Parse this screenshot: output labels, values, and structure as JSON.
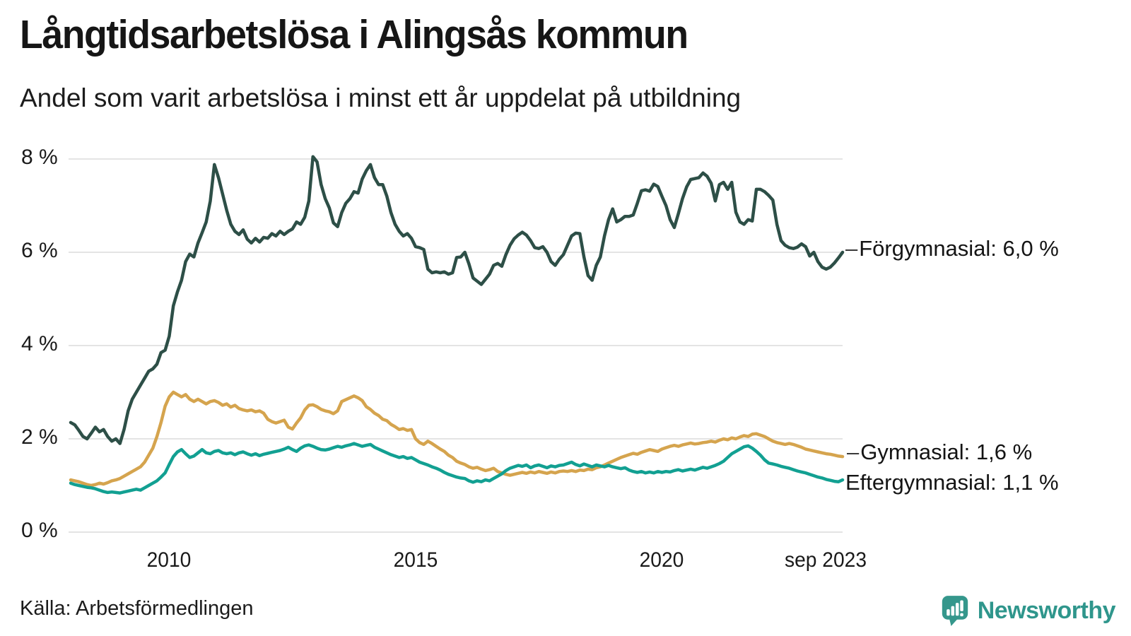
{
  "header": {
    "title": "Långtidsarbetslösa i Alingsås kommun",
    "subtitle": "Andel som varit arbetslösa i minst ett år uppdelat på utbildning"
  },
  "chart": {
    "y_ticks": [
      {
        "label": "8 %",
        "value": 8
      },
      {
        "label": "6 %",
        "value": 6
      },
      {
        "label": "4 %",
        "value": 4
      },
      {
        "label": "2 %",
        "value": 2
      },
      {
        "label": "0 %",
        "value": 0
      }
    ],
    "x_ticks": [
      {
        "label": "2010",
        "value": 2010
      },
      {
        "label": "2015",
        "value": 2015
      },
      {
        "label": "2020",
        "value": 2020
      },
      {
        "label": "sep 2023",
        "value": 2023.667
      }
    ],
    "series_labels": [
      {
        "dash": "–",
        "text": "Förgymnasial: 6,0 %"
      },
      {
        "dash": "–",
        "text": "Gymnasial: 1,6 %"
      },
      {
        "dash": "",
        "text": "Eftergymnasial: 1,1 %"
      }
    ]
  },
  "chart_data": {
    "type": "line",
    "title": "Långtidsarbetslösa i Alingsås kommun",
    "subtitle": "Andel som varit arbetslösa i minst ett år uppdelat på utbildning",
    "unit": "%",
    "x_start": "2008-01",
    "x_end": "2023-09",
    "x_step": "monthly",
    "xlim": [
      2008.0,
      2023.667
    ],
    "ylim": [
      0,
      8
    ],
    "grid": "horizontal",
    "legend_position": "right-end-labels",
    "gridline_color": "#e4e4e4",
    "series": [
      {
        "name": "Förgymnasial",
        "color": "#2d4f47",
        "end_label": "Förgymnasial: 6,0 %",
        "end_value_text": "6,0 %",
        "values": [
          2.35,
          2.3,
          2.18,
          2.05,
          2.0,
          2.12,
          2.25,
          2.15,
          2.2,
          2.05,
          1.95,
          2.0,
          1.9,
          2.2,
          2.6,
          2.85,
          3.0,
          3.15,
          3.3,
          3.45,
          3.5,
          3.6,
          3.85,
          3.9,
          4.2,
          4.85,
          5.15,
          5.4,
          5.8,
          5.96,
          5.9,
          6.2,
          6.42,
          6.65,
          7.1,
          7.88,
          7.6,
          7.25,
          6.9,
          6.6,
          6.45,
          6.38,
          6.48,
          6.28,
          6.2,
          6.3,
          6.22,
          6.32,
          6.3,
          6.4,
          6.35,
          6.45,
          6.38,
          6.45,
          6.5,
          6.65,
          6.6,
          6.75,
          7.1,
          8.05,
          7.94,
          7.45,
          7.15,
          6.95,
          6.63,
          6.55,
          6.85,
          7.05,
          7.15,
          7.3,
          7.27,
          7.57,
          7.75,
          7.88,
          7.6,
          7.45,
          7.45,
          7.2,
          6.85,
          6.6,
          6.45,
          6.35,
          6.4,
          6.3,
          6.12,
          6.1,
          6.06,
          5.64,
          5.56,
          5.58,
          5.56,
          5.58,
          5.53,
          5.56,
          5.89,
          5.9,
          6.0,
          5.75,
          5.45,
          5.38,
          5.31,
          5.42,
          5.53,
          5.72,
          5.76,
          5.7,
          5.95,
          6.15,
          6.29,
          6.37,
          6.43,
          6.37,
          6.25,
          6.1,
          6.08,
          6.12,
          6.0,
          5.8,
          5.72,
          5.85,
          5.95,
          6.15,
          6.35,
          6.41,
          6.4,
          5.9,
          5.5,
          5.4,
          5.72,
          5.9,
          6.35,
          6.7,
          6.93,
          6.65,
          6.7,
          6.77,
          6.77,
          6.8,
          7.05,
          7.32,
          7.34,
          7.31,
          7.46,
          7.41,
          7.2,
          7.0,
          6.7,
          6.53,
          6.83,
          7.15,
          7.4,
          7.56,
          7.58,
          7.6,
          7.7,
          7.63,
          7.48,
          7.1,
          7.45,
          7.5,
          7.35,
          7.5,
          6.86,
          6.65,
          6.6,
          6.7,
          6.67,
          7.35,
          7.35,
          7.3,
          7.22,
          7.12,
          6.6,
          6.25,
          6.15,
          6.1,
          6.08,
          6.11,
          6.18,
          6.12,
          5.92,
          6.0,
          5.8,
          5.68,
          5.64,
          5.68,
          5.77,
          5.88,
          6.0
        ]
      },
      {
        "name": "Gymnasial",
        "color": "#d5a44e",
        "end_label": "Gymnasial: 1,6 %",
        "end_value_text": "1,6 %",
        "values": [
          1.12,
          1.1,
          1.08,
          1.05,
          1.02,
          1.0,
          1.02,
          1.05,
          1.03,
          1.06,
          1.1,
          1.12,
          1.15,
          1.2,
          1.25,
          1.3,
          1.35,
          1.4,
          1.5,
          1.65,
          1.8,
          2.05,
          2.35,
          2.7,
          2.9,
          3.0,
          2.95,
          2.9,
          2.95,
          2.85,
          2.8,
          2.85,
          2.8,
          2.75,
          2.8,
          2.82,
          2.78,
          2.72,
          2.75,
          2.68,
          2.72,
          2.65,
          2.62,
          2.6,
          2.62,
          2.58,
          2.6,
          2.55,
          2.42,
          2.37,
          2.34,
          2.37,
          2.4,
          2.25,
          2.21,
          2.34,
          2.45,
          2.62,
          2.72,
          2.73,
          2.69,
          2.63,
          2.6,
          2.58,
          2.54,
          2.6,
          2.8,
          2.84,
          2.88,
          2.92,
          2.88,
          2.82,
          2.69,
          2.63,
          2.55,
          2.5,
          2.42,
          2.39,
          2.31,
          2.26,
          2.2,
          2.22,
          2.18,
          2.2,
          2.0,
          1.92,
          1.88,
          1.95,
          1.9,
          1.84,
          1.78,
          1.73,
          1.65,
          1.6,
          1.52,
          1.48,
          1.45,
          1.4,
          1.37,
          1.39,
          1.35,
          1.32,
          1.34,
          1.37,
          1.3,
          1.27,
          1.24,
          1.22,
          1.24,
          1.26,
          1.28,
          1.26,
          1.29,
          1.27,
          1.3,
          1.28,
          1.26,
          1.29,
          1.27,
          1.3,
          1.31,
          1.3,
          1.32,
          1.3,
          1.33,
          1.32,
          1.35,
          1.34,
          1.38,
          1.4,
          1.44,
          1.48,
          1.52,
          1.56,
          1.6,
          1.63,
          1.66,
          1.69,
          1.67,
          1.71,
          1.74,
          1.77,
          1.75,
          1.73,
          1.78,
          1.81,
          1.84,
          1.86,
          1.84,
          1.87,
          1.89,
          1.91,
          1.89,
          1.9,
          1.92,
          1.93,
          1.95,
          1.93,
          1.97,
          2.0,
          1.98,
          2.02,
          2.0,
          2.04,
          2.07,
          2.05,
          2.1,
          2.11,
          2.08,
          2.05,
          2.0,
          1.95,
          1.92,
          1.9,
          1.88,
          1.9,
          1.88,
          1.85,
          1.82,
          1.78,
          1.76,
          1.74,
          1.72,
          1.7,
          1.68,
          1.67,
          1.65,
          1.63,
          1.62
        ]
      },
      {
        "name": "Eftergymnasial",
        "color": "#12a092",
        "end_label": "Eftergymnasial: 1,1 %",
        "end_value_text": "1,1 %",
        "values": [
          1.05,
          1.02,
          1.0,
          0.98,
          0.96,
          0.95,
          0.93,
          0.9,
          0.87,
          0.85,
          0.86,
          0.85,
          0.84,
          0.86,
          0.88,
          0.9,
          0.92,
          0.9,
          0.95,
          1.0,
          1.05,
          1.1,
          1.18,
          1.27,
          1.45,
          1.62,
          1.72,
          1.77,
          1.68,
          1.6,
          1.63,
          1.7,
          1.77,
          1.7,
          1.68,
          1.73,
          1.75,
          1.7,
          1.68,
          1.7,
          1.66,
          1.7,
          1.72,
          1.68,
          1.65,
          1.68,
          1.64,
          1.67,
          1.69,
          1.71,
          1.73,
          1.75,
          1.78,
          1.82,
          1.77,
          1.73,
          1.8,
          1.85,
          1.87,
          1.84,
          1.8,
          1.77,
          1.76,
          1.78,
          1.81,
          1.84,
          1.82,
          1.85,
          1.87,
          1.9,
          1.87,
          1.84,
          1.86,
          1.88,
          1.82,
          1.78,
          1.74,
          1.7,
          1.66,
          1.63,
          1.6,
          1.62,
          1.58,
          1.6,
          1.55,
          1.5,
          1.47,
          1.44,
          1.4,
          1.37,
          1.33,
          1.28,
          1.24,
          1.21,
          1.18,
          1.16,
          1.15,
          1.1,
          1.07,
          1.1,
          1.08,
          1.12,
          1.1,
          1.15,
          1.2,
          1.25,
          1.32,
          1.37,
          1.4,
          1.43,
          1.41,
          1.44,
          1.38,
          1.42,
          1.44,
          1.41,
          1.38,
          1.42,
          1.4,
          1.43,
          1.44,
          1.47,
          1.5,
          1.45,
          1.42,
          1.46,
          1.43,
          1.4,
          1.44,
          1.42,
          1.4,
          1.43,
          1.4,
          1.38,
          1.36,
          1.38,
          1.33,
          1.3,
          1.28,
          1.3,
          1.27,
          1.29,
          1.27,
          1.3,
          1.28,
          1.3,
          1.29,
          1.32,
          1.34,
          1.31,
          1.33,
          1.35,
          1.33,
          1.36,
          1.39,
          1.37,
          1.4,
          1.43,
          1.47,
          1.52,
          1.6,
          1.68,
          1.73,
          1.78,
          1.83,
          1.85,
          1.8,
          1.73,
          1.65,
          1.55,
          1.48,
          1.46,
          1.44,
          1.41,
          1.39,
          1.37,
          1.34,
          1.31,
          1.29,
          1.27,
          1.24,
          1.21,
          1.18,
          1.16,
          1.13,
          1.11,
          1.09,
          1.08,
          1.12
        ]
      }
    ]
  },
  "footer": {
    "source": "Källa: Arbetsförmedlingen",
    "logo_text": "Newsworthy"
  },
  "colors": {
    "forgymnasial": "#2d4f47",
    "gymnasial": "#d5a44e",
    "eftergymnasial": "#12a092",
    "gridline": "#e4e4e4",
    "logo_teal": "#2f968c",
    "text": "#161616"
  }
}
